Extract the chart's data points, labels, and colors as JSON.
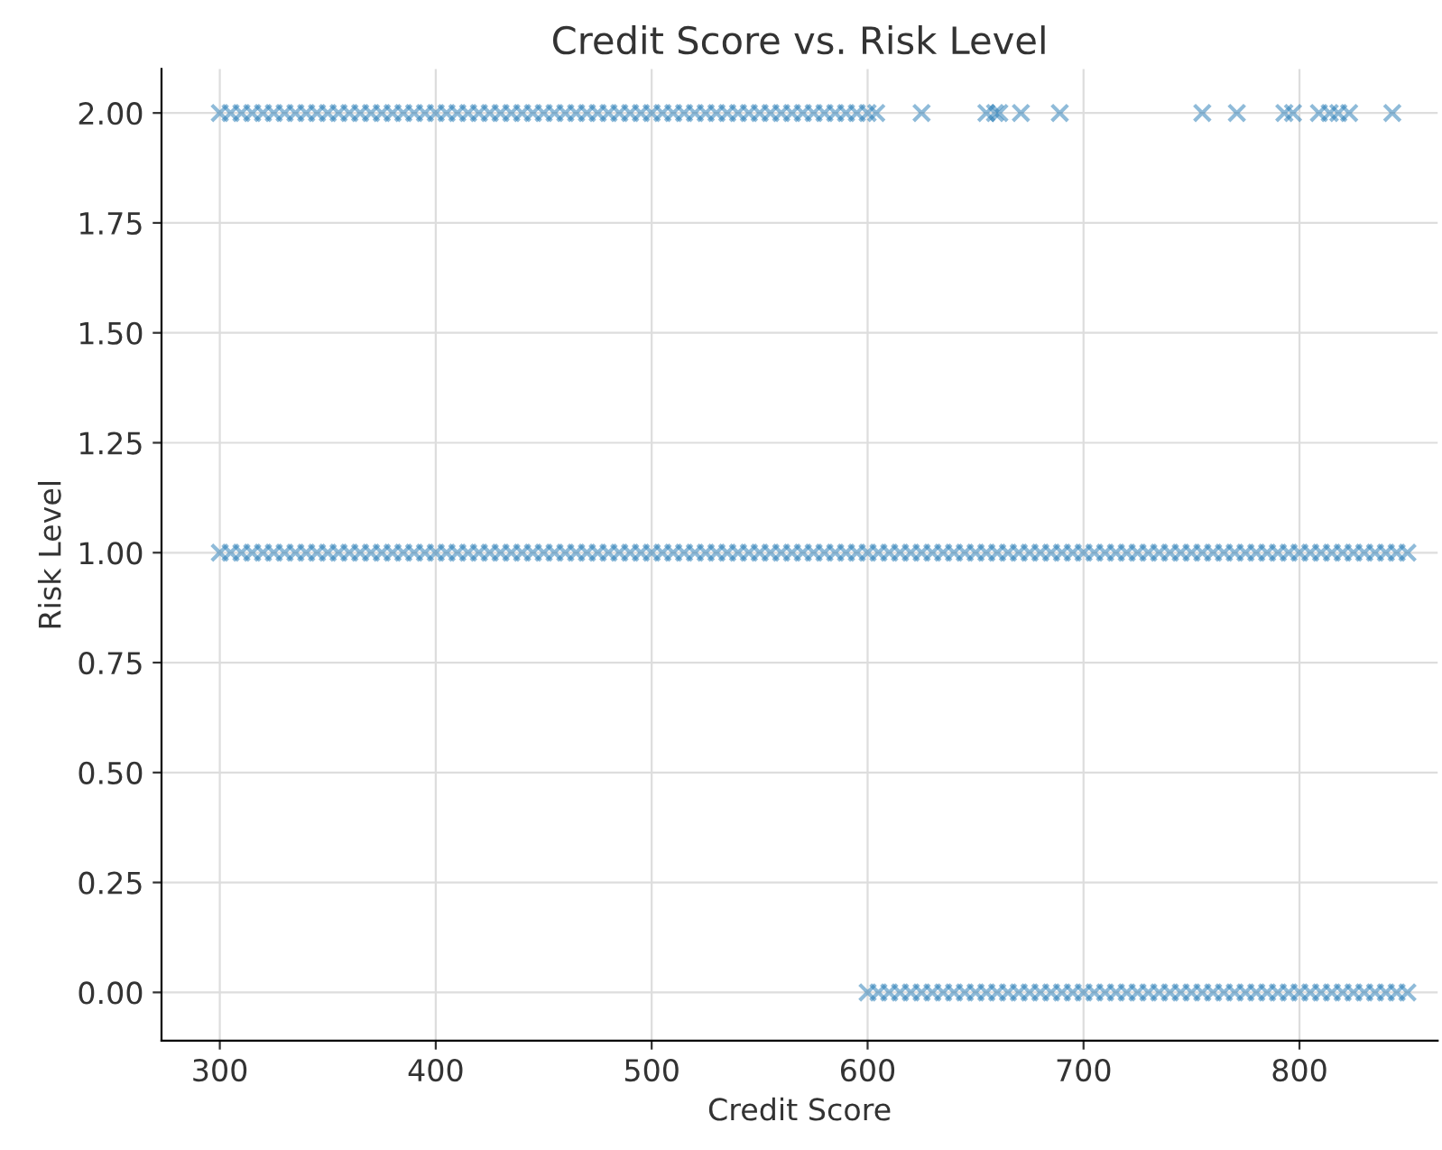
{
  "chart_data": {
    "type": "scatter",
    "title": "Credit Score vs. Risk Level",
    "xlabel": "Credit Score",
    "ylabel": "Risk Level",
    "xlim": [
      273,
      864
    ],
    "xticks": [
      300,
      400,
      500,
      600,
      700,
      800
    ],
    "ylim": [
      -0.11,
      2.1
    ],
    "yticks": [
      {
        "value": 0,
        "label": "0.00"
      },
      {
        "value": 0.25,
        "label": "0.25"
      },
      {
        "value": 0.5,
        "label": "0.50"
      },
      {
        "value": 0.75,
        "label": "0.75"
      },
      {
        "value": 1,
        "label": "1.00"
      },
      {
        "value": 1.25,
        "label": "1.25"
      },
      {
        "value": 1.5,
        "label": "1.50"
      },
      {
        "value": 1.75,
        "label": "1.75"
      },
      {
        "value": 2,
        "label": "2.00"
      }
    ],
    "grid": true,
    "marker": "cross",
    "series": [
      {
        "color": "#1f77b4",
        "x": [
          300,
          305,
          310,
          315,
          320,
          325,
          330,
          335,
          340,
          345,
          350,
          355,
          360,
          365,
          370,
          375,
          380,
          385,
          390,
          395,
          400,
          405,
          410,
          415,
          420,
          425,
          430,
          435,
          440,
          445,
          450,
          455,
          460,
          465,
          470,
          475,
          480,
          485,
          490,
          495,
          500,
          505,
          510,
          515,
          520,
          525,
          530,
          535,
          540,
          545,
          550,
          555,
          560,
          565,
          570,
          575,
          580,
          585,
          590,
          595,
          600,
          604,
          625,
          655,
          659,
          661,
          671,
          689,
          755,
          771,
          793,
          797,
          809,
          814,
          818,
          823,
          843
        ],
        "values": [
          2,
          2,
          2,
          2,
          2,
          2,
          2,
          2,
          2,
          2,
          2,
          2,
          2,
          2,
          2,
          2,
          2,
          2,
          2,
          2,
          2,
          2,
          2,
          2,
          2,
          2,
          2,
          2,
          2,
          2,
          2,
          2,
          2,
          2,
          2,
          2,
          2,
          2,
          2,
          2,
          2,
          2,
          2,
          2,
          2,
          2,
          2,
          2,
          2,
          2,
          2,
          2,
          2,
          2,
          2,
          2,
          2,
          2,
          2,
          2,
          2,
          2,
          2,
          2,
          2,
          2,
          2,
          2,
          2,
          2,
          2,
          2,
          2,
          2,
          2,
          2,
          2
        ]
      },
      {
        "color": "#1f77b4",
        "x": [
          300,
          305,
          310,
          315,
          320,
          325,
          330,
          335,
          340,
          345,
          350,
          355,
          360,
          365,
          370,
          375,
          380,
          385,
          390,
          395,
          400,
          405,
          410,
          415,
          420,
          425,
          430,
          435,
          440,
          445,
          450,
          455,
          460,
          465,
          470,
          475,
          480,
          485,
          490,
          495,
          500,
          505,
          510,
          515,
          520,
          525,
          530,
          535,
          540,
          545,
          550,
          555,
          560,
          565,
          570,
          575,
          580,
          585,
          590,
          595,
          600,
          605,
          610,
          615,
          620,
          625,
          630,
          635,
          640,
          645,
          650,
          655,
          660,
          665,
          670,
          675,
          680,
          685,
          690,
          695,
          700,
          705,
          710,
          715,
          720,
          725,
          730,
          735,
          740,
          745,
          750,
          755,
          760,
          765,
          770,
          775,
          780,
          785,
          790,
          795,
          800,
          805,
          810,
          815,
          820,
          825,
          830,
          835,
          840,
          845,
          850
        ],
        "values": [
          1,
          1,
          1,
          1,
          1,
          1,
          1,
          1,
          1,
          1,
          1,
          1,
          1,
          1,
          1,
          1,
          1,
          1,
          1,
          1,
          1,
          1,
          1,
          1,
          1,
          1,
          1,
          1,
          1,
          1,
          1,
          1,
          1,
          1,
          1,
          1,
          1,
          1,
          1,
          1,
          1,
          1,
          1,
          1,
          1,
          1,
          1,
          1,
          1,
          1,
          1,
          1,
          1,
          1,
          1,
          1,
          1,
          1,
          1,
          1,
          1,
          1,
          1,
          1,
          1,
          1,
          1,
          1,
          1,
          1,
          1,
          1,
          1,
          1,
          1,
          1,
          1,
          1,
          1,
          1,
          1,
          1,
          1,
          1,
          1,
          1,
          1,
          1,
          1,
          1,
          1,
          1,
          1,
          1,
          1,
          1,
          1,
          1,
          1,
          1,
          1,
          1,
          1,
          1,
          1,
          1,
          1,
          1,
          1,
          1,
          1
        ]
      },
      {
        "color": "#1f77b4",
        "x": [
          600,
          605,
          610,
          615,
          620,
          625,
          630,
          635,
          640,
          645,
          650,
          655,
          660,
          665,
          670,
          675,
          680,
          685,
          690,
          695,
          700,
          705,
          710,
          715,
          720,
          725,
          730,
          735,
          740,
          745,
          750,
          755,
          760,
          765,
          770,
          775,
          780,
          785,
          790,
          795,
          800,
          805,
          810,
          815,
          820,
          825,
          830,
          835,
          840,
          845,
          850
        ],
        "values": [
          0,
          0,
          0,
          0,
          0,
          0,
          0,
          0,
          0,
          0,
          0,
          0,
          0,
          0,
          0,
          0,
          0,
          0,
          0,
          0,
          0,
          0,
          0,
          0,
          0,
          0,
          0,
          0,
          0,
          0,
          0,
          0,
          0,
          0,
          0,
          0,
          0,
          0,
          0,
          0,
          0,
          0,
          0,
          0,
          0,
          0,
          0,
          0,
          0,
          0,
          0
        ]
      }
    ]
  }
}
